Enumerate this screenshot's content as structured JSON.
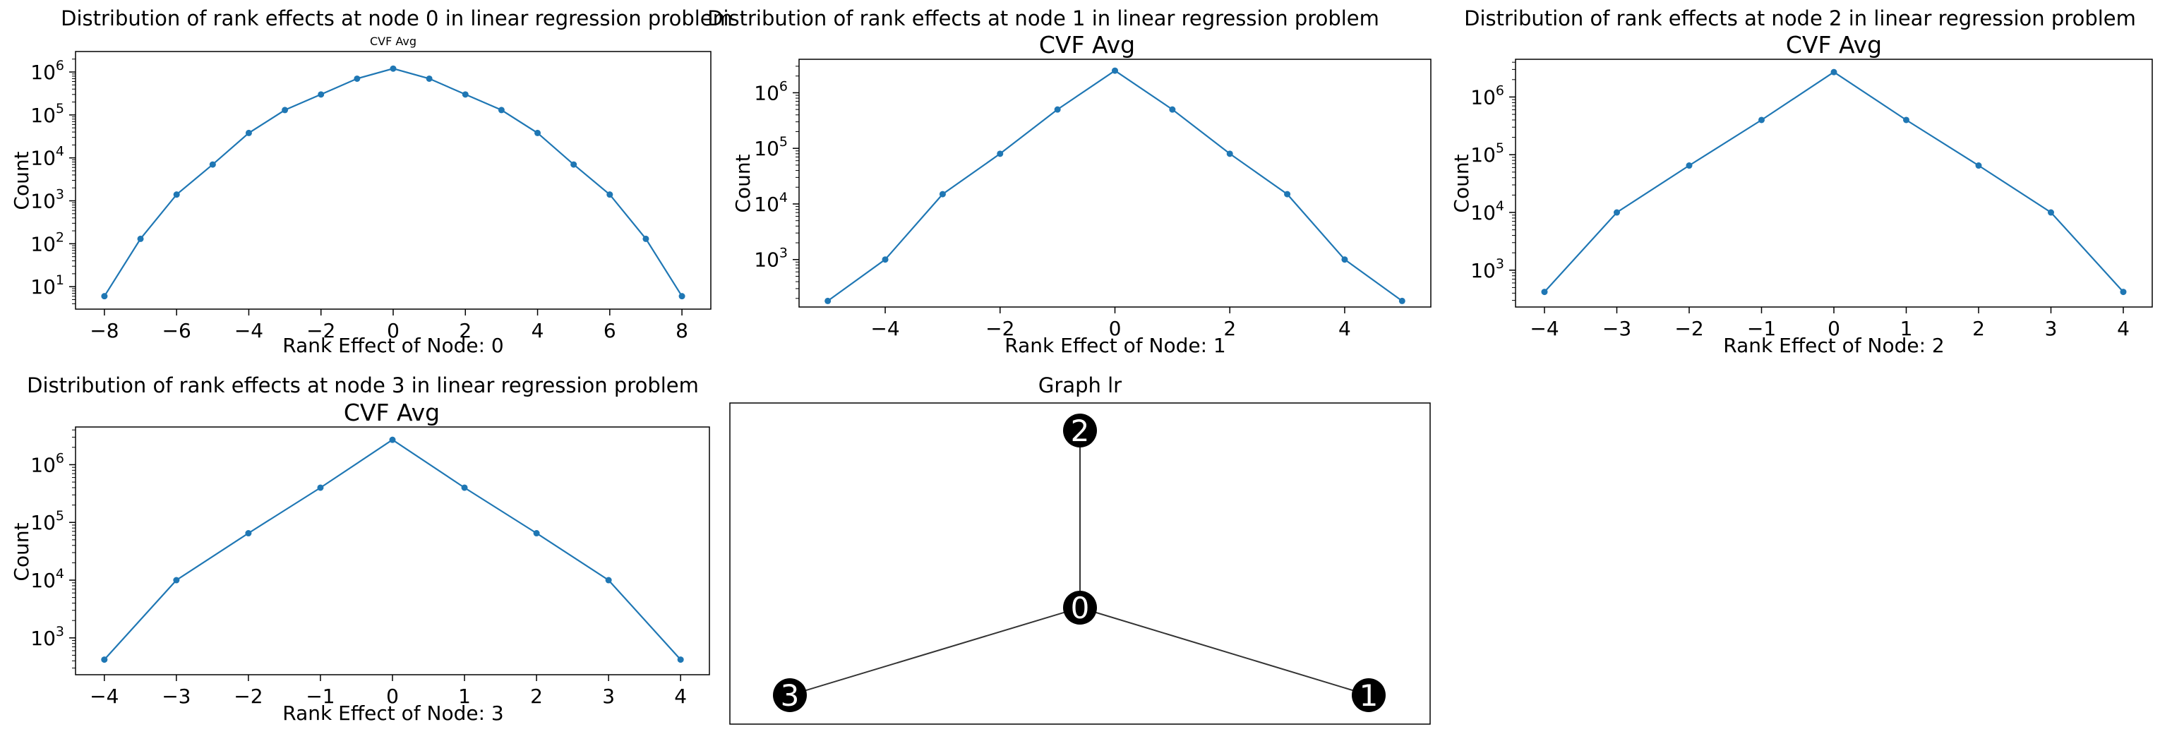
{
  "charts": [
    {
      "suptitle": "Distribution of rank effects at node 0 in linear regression problem",
      "title": "CVF Avg",
      "xlabel": "Rank Effect of Node: 0",
      "ylabel": "Count",
      "xticks": [
        "−8",
        "−6",
        "−4",
        "−2",
        "0",
        "2",
        "4",
        "6",
        "8"
      ],
      "yticks": [
        "10",
        "10",
        "10",
        "10",
        "10",
        "10"
      ],
      "ytick_exps": [
        "1",
        "2",
        "3",
        "4",
        "5",
        "6"
      ]
    },
    {
      "suptitle": "Distribution of rank effects at node 1 in linear regression problem",
      "title": "CVF Avg",
      "xlabel": "Rank Effect of Node: 1",
      "ylabel": "Count",
      "xticks": [
        "−4",
        "−2",
        "0",
        "2",
        "4"
      ],
      "yticks": [
        "10",
        "10",
        "10",
        "10"
      ],
      "ytick_exps": [
        "3",
        "4",
        "5",
        "6"
      ]
    },
    {
      "suptitle": "Distribution of rank effects at node 2 in linear regression problem",
      "title": "CVF Avg",
      "xlabel": "Rank Effect of Node: 2",
      "ylabel": "Count",
      "xticks": [
        "−4",
        "−3",
        "−2",
        "−1",
        "0",
        "1",
        "2",
        "3",
        "4"
      ],
      "yticks": [
        "10",
        "10",
        "10",
        "10"
      ],
      "ytick_exps": [
        "3",
        "4",
        "5",
        "6"
      ]
    },
    {
      "suptitle": "Distribution of rank effects at node 3 in linear regression problem",
      "title": "CVF Avg",
      "xlabel": "Rank Effect of Node: 3",
      "ylabel": "Count",
      "xticks": [
        "−4",
        "−3",
        "−2",
        "−1",
        "0",
        "1",
        "2",
        "3",
        "4"
      ],
      "yticks": [
        "10",
        "10",
        "10",
        "10"
      ],
      "ytick_exps": [
        "3",
        "4",
        "5",
        "6"
      ]
    }
  ],
  "graph": {
    "title": "Graph lr",
    "nodes": [
      {
        "id": "0",
        "label": "0"
      },
      {
        "id": "1",
        "label": "1"
      },
      {
        "id": "2",
        "label": "2"
      },
      {
        "id": "3",
        "label": "3"
      }
    ],
    "edges": [
      [
        "0",
        "1"
      ],
      [
        "0",
        "2"
      ],
      [
        "0",
        "3"
      ]
    ]
  },
  "colors": {
    "series": "#1f77b4",
    "node": "#000000",
    "node_label": "#ffffff",
    "edge": "#333333"
  },
  "chart_data": [
    {
      "type": "line",
      "title": "CVF Avg",
      "xlabel": "Rank Effect of Node: 0",
      "ylabel": "Count",
      "yscale": "log",
      "xlim": [
        -8.8,
        8.8
      ],
      "ylim": [
        3,
        3000000
      ],
      "xtick_values": [
        -8,
        -6,
        -4,
        -2,
        0,
        2,
        4,
        6,
        8
      ],
      "ytick_values": [
        10,
        100,
        1000,
        10000,
        100000,
        1000000
      ],
      "x": [
        -8,
        -7,
        -6,
        -5,
        -4,
        -3,
        -2,
        -1,
        0,
        1,
        2,
        3,
        4,
        5,
        6,
        7,
        8
      ],
      "y": [
        6,
        130,
        1400,
        7000,
        38000,
        130000,
        300000,
        700000,
        1200000,
        700000,
        300000,
        130000,
        38000,
        7000,
        1400,
        130,
        6
      ]
    },
    {
      "type": "line",
      "title": "CVF Avg",
      "xlabel": "Rank Effect of Node: 1",
      "ylabel": "Count",
      "yscale": "log",
      "xlim": [
        -5.5,
        5.5
      ],
      "ylim": [
        140,
        4000000
      ],
      "xtick_values": [
        -4,
        -2,
        0,
        2,
        4
      ],
      "ytick_values": [
        1000,
        10000,
        100000,
        1000000
      ],
      "x": [
        -5,
        -4,
        -3,
        -2,
        -1,
        0,
        1,
        2,
        3,
        4,
        5
      ],
      "y": [
        180,
        1000,
        15000,
        80000,
        500000,
        2500000,
        500000,
        80000,
        15000,
        1000,
        180
      ]
    },
    {
      "type": "line",
      "title": "CVF Avg",
      "xlabel": "Rank Effect of Node: 2",
      "ylabel": "Count",
      "yscale": "log",
      "xlim": [
        -4.4,
        4.4
      ],
      "ylim": [
        230,
        4500000
      ],
      "xtick_values": [
        -4,
        -3,
        -2,
        -1,
        0,
        1,
        2,
        3,
        4
      ],
      "ytick_values": [
        1000,
        10000,
        100000,
        1000000
      ],
      "x": [
        -4,
        -3,
        -2,
        -1,
        0,
        1,
        2,
        3,
        4
      ],
      "y": [
        420,
        10000,
        65000,
        400000,
        2700000,
        400000,
        65000,
        10000,
        420
      ]
    },
    {
      "type": "line",
      "title": "CVF Avg",
      "xlabel": "Rank Effect of Node: 3",
      "ylabel": "Count",
      "yscale": "log",
      "xlim": [
        -4.4,
        4.4
      ],
      "ylim": [
        230,
        4500000
      ],
      "xtick_values": [
        -4,
        -3,
        -2,
        -1,
        0,
        1,
        2,
        3,
        4
      ],
      "ytick_values": [
        1000,
        10000,
        100000,
        1000000
      ],
      "x": [
        -4,
        -3,
        -2,
        -1,
        0,
        1,
        2,
        3,
        4
      ],
      "y": [
        420,
        10000,
        65000,
        400000,
        2700000,
        400000,
        65000,
        10000,
        420
      ]
    }
  ]
}
